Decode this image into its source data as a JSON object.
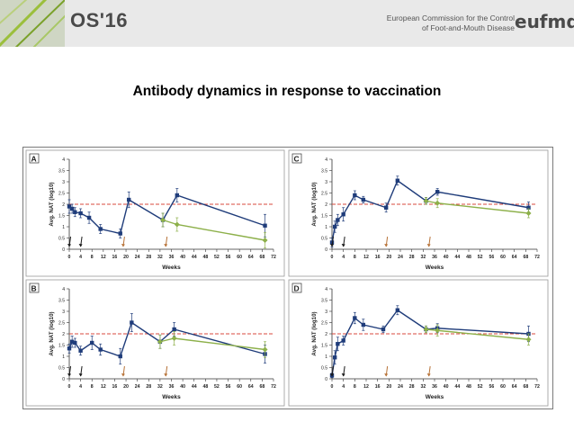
{
  "header": {
    "conference": "OS'16",
    "commission": [
      "European Commission for the Control",
      "of Foot-and-Mouth Disease"
    ],
    "logo": "eufmd"
  },
  "slide": {
    "title": "Antibody dynamics in response to vaccination"
  },
  "colors": {
    "blue": "#1f3c7a",
    "green": "#8db04a",
    "threshold": "#d94a3d",
    "vaccine": "#1a1a1a",
    "booster": "#b8743a"
  },
  "chart_data": [
    {
      "panel": "A",
      "type": "line",
      "xlabel": "Weeks",
      "ylabel": "Avg. NAT (log10)",
      "xlim": [
        0,
        72
      ],
      "ylim": [
        0,
        4
      ],
      "threshold": 2,
      "xticks": [
        0,
        4,
        8,
        12,
        16,
        20,
        24,
        28,
        32,
        36,
        40,
        44,
        48,
        52,
        56,
        60,
        64,
        68,
        72
      ],
      "yticks": [
        0,
        0.5,
        1,
        1.5,
        2,
        2.5,
        3,
        3.5,
        4
      ],
      "arrows": {
        "black": [
          0,
          4
        ],
        "orange": [
          19,
          34
        ]
      },
      "series": [
        {
          "name": "blue",
          "x": [
            0,
            1,
            2,
            4,
            7,
            11,
            18,
            21,
            33,
            38,
            69
          ],
          "y": [
            1.9,
            1.8,
            1.65,
            1.6,
            1.4,
            0.9,
            0.7,
            2.2,
            1.3,
            2.4,
            1.05
          ],
          "err": [
            0.3,
            0.2,
            0.2,
            0.2,
            0.25,
            0.2,
            0.2,
            0.35,
            0.3,
            0.3,
            0.5
          ]
        },
        {
          "name": "green",
          "x": [
            33,
            38,
            69
          ],
          "y": [
            1.3,
            1.1,
            0.4
          ],
          "err": [
            0.3,
            0.3,
            0.35
          ]
        }
      ]
    },
    {
      "panel": "C",
      "type": "line",
      "xlabel": "Weeks",
      "ylabel": "Avg. NAT (log10)",
      "xlim": [
        0,
        72
      ],
      "ylim": [
        0,
        4
      ],
      "threshold": 2,
      "xticks": [
        0,
        4,
        8,
        12,
        16,
        20,
        24,
        28,
        32,
        36,
        40,
        44,
        48,
        52,
        56,
        60,
        64,
        68,
        72
      ],
      "yticks": [
        0,
        0.5,
        1,
        1.5,
        2,
        2.5,
        3,
        3.5,
        4
      ],
      "arrows": {
        "black": [
          0,
          4
        ],
        "orange": [
          19,
          34
        ]
      },
      "series": [
        {
          "name": "blue",
          "x": [
            0,
            1,
            2,
            4,
            8,
            11,
            19,
            23,
            33,
            37,
            69
          ],
          "y": [
            0.3,
            1.0,
            1.3,
            1.55,
            2.4,
            2.2,
            1.85,
            3.05,
            2.15,
            2.55,
            1.85
          ],
          "err": [
            0.2,
            0.25,
            0.25,
            0.3,
            0.2,
            0.15,
            0.2,
            0.2,
            0.15,
            0.15,
            0.25
          ]
        },
        {
          "name": "green",
          "x": [
            33,
            37,
            69
          ],
          "y": [
            2.15,
            2.05,
            1.6
          ],
          "err": [
            0.15,
            0.2,
            0.2
          ]
        }
      ]
    },
    {
      "panel": "B",
      "type": "line",
      "xlabel": "Weeks",
      "ylabel": "Avg. NAT (log10)",
      "xlim": [
        0,
        72
      ],
      "ylim": [
        0,
        4
      ],
      "threshold": 2,
      "xticks": [
        0,
        4,
        8,
        12,
        16,
        20,
        24,
        28,
        32,
        36,
        40,
        44,
        48,
        52,
        56,
        60,
        64,
        68,
        72
      ],
      "yticks": [
        0,
        0.5,
        1,
        1.5,
        2,
        2.5,
        3,
        3.5,
        4
      ],
      "arrows": {
        "black": [
          0,
          4
        ],
        "orange": [
          19,
          34
        ]
      },
      "series": [
        {
          "name": "blue",
          "x": [
            0,
            1,
            2,
            4,
            8,
            11,
            18,
            22,
            32,
            37,
            69
          ],
          "y": [
            1.35,
            1.65,
            1.6,
            1.25,
            1.6,
            1.3,
            1.0,
            2.5,
            1.65,
            2.2,
            1.1
          ],
          "err": [
            0.2,
            0.25,
            0.2,
            0.2,
            0.3,
            0.25,
            0.35,
            0.4,
            0.3,
            0.3,
            0.4
          ]
        },
        {
          "name": "green",
          "x": [
            32,
            37,
            69
          ],
          "y": [
            1.65,
            1.8,
            1.3
          ],
          "err": [
            0.3,
            0.3,
            0.35
          ]
        }
      ]
    },
    {
      "panel": "D",
      "type": "line",
      "xlabel": "Weeks",
      "ylabel": "Avg. NAT (log10)",
      "xlim": [
        0,
        72
      ],
      "ylim": [
        0,
        4
      ],
      "threshold": 2,
      "xticks": [
        0,
        4,
        8,
        12,
        16,
        20,
        24,
        28,
        32,
        36,
        40,
        44,
        48,
        52,
        56,
        60,
        64,
        68,
        72
      ],
      "yticks": [
        0,
        0.5,
        1,
        1.5,
        2,
        2.5,
        3,
        3.5,
        4
      ],
      "arrows": {
        "black": [
          0,
          4
        ],
        "orange": [
          19,
          34
        ]
      },
      "series": [
        {
          "name": "blue",
          "x": [
            0,
            1,
            2,
            4,
            8,
            11,
            18,
            23,
            33,
            37,
            69
          ],
          "y": [
            0.15,
            0.95,
            1.55,
            1.7,
            2.7,
            2.4,
            2.2,
            3.05,
            2.2,
            2.25,
            2.0
          ],
          "err": [
            0.1,
            0.3,
            0.3,
            0.2,
            0.25,
            0.25,
            0.15,
            0.2,
            0.15,
            0.2,
            0.35
          ]
        },
        {
          "name": "green",
          "x": [
            33,
            37,
            69
          ],
          "y": [
            2.2,
            2.15,
            1.75
          ],
          "err": [
            0.15,
            0.25,
            0.25
          ]
        }
      ]
    }
  ]
}
